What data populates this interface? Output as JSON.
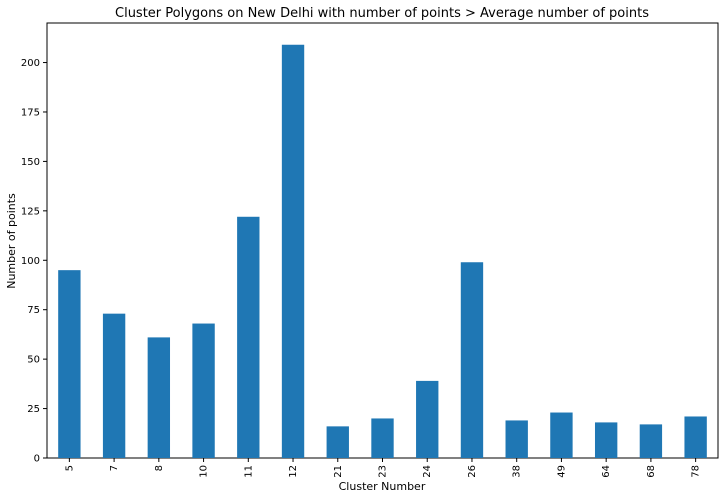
{
  "chart_data": {
    "type": "bar",
    "title": "Cluster Polygons on New Delhi with number of points > Average number of points",
    "xlabel": "Cluster Number",
    "ylabel": "Number of points",
    "categories": [
      "5",
      "7",
      "8",
      "10",
      "11",
      "12",
      "21",
      "23",
      "24",
      "26",
      "38",
      "49",
      "64",
      "68",
      "78"
    ],
    "values": [
      95,
      73,
      61,
      68,
      122,
      209,
      16,
      20,
      39,
      99,
      19,
      23,
      18,
      17,
      21
    ],
    "ylim": [
      0,
      220
    ],
    "yticks": [
      0,
      25,
      50,
      75,
      100,
      125,
      150,
      175,
      200
    ],
    "ytick_labels": [
      "0",
      "25",
      "50",
      "75",
      "100",
      "125",
      "150",
      "175",
      "200"
    ],
    "bar_color": "#1f77b4",
    "grid": false,
    "legend": "none"
  }
}
